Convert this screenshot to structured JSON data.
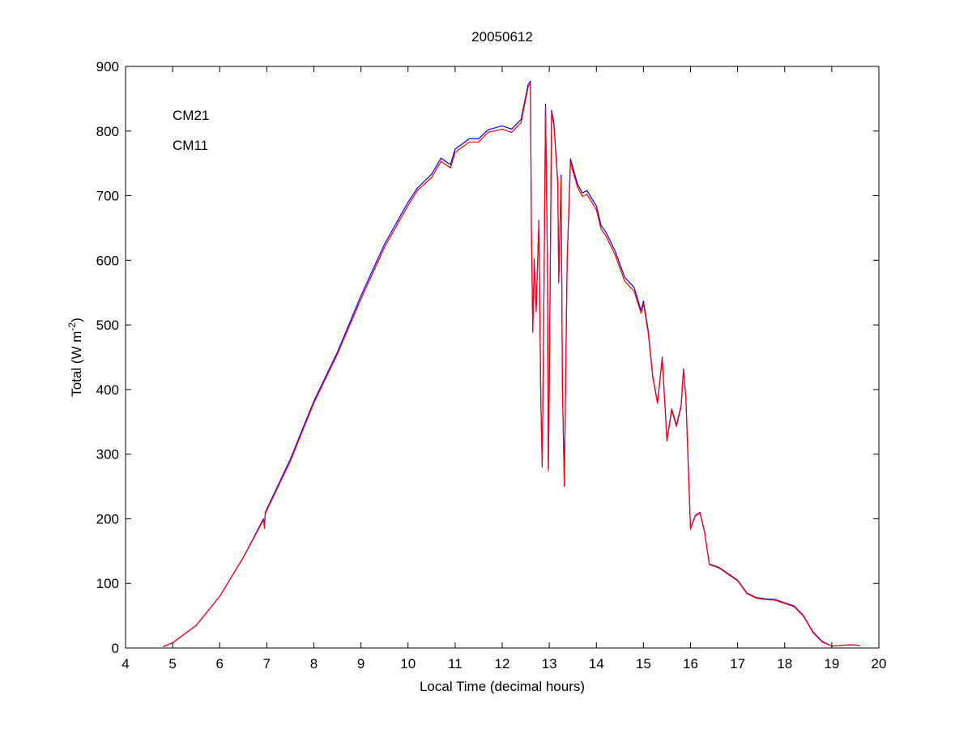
{
  "chart_data": {
    "type": "line",
    "title": "20050612",
    "xlabel": "Local Time (decimal hours)",
    "ylabel_prefix": "Total (W m",
    "ylabel_sup": "-2",
    "ylabel_suffix": ")",
    "xlim": [
      4,
      20
    ],
    "ylim": [
      0,
      900
    ],
    "xticks": [
      4,
      5,
      6,
      7,
      8,
      9,
      10,
      11,
      12,
      13,
      14,
      15,
      16,
      17,
      18,
      19,
      20
    ],
    "yticks": [
      0,
      100,
      200,
      300,
      400,
      500,
      600,
      700,
      800,
      900
    ],
    "grid": false,
    "legend_placement": "top-left",
    "x": [
      4.8,
      5.0,
      5.5,
      6.0,
      6.5,
      6.93,
      6.95,
      6.97,
      7.0,
      7.5,
      8.0,
      8.5,
      9.0,
      9.5,
      10.0,
      10.2,
      10.5,
      10.7,
      10.9,
      11.0,
      11.3,
      11.5,
      11.7,
      12.0,
      12.2,
      12.4,
      12.55,
      12.6,
      12.62,
      12.65,
      12.68,
      12.72,
      12.78,
      12.82,
      12.85,
      12.88,
      12.92,
      12.96,
      12.98,
      13.0,
      13.05,
      13.1,
      13.18,
      13.2,
      13.25,
      13.28,
      13.32,
      13.38,
      13.45,
      13.5,
      13.6,
      13.7,
      13.8,
      14.0,
      14.1,
      14.2,
      14.4,
      14.6,
      14.8,
      14.95,
      15.0,
      15.1,
      15.2,
      15.3,
      15.4,
      15.5,
      15.6,
      15.7,
      15.8,
      15.85,
      15.9,
      16.0,
      16.1,
      16.2,
      16.3,
      16.4,
      16.6,
      16.8,
      17.0,
      17.2,
      17.4,
      17.6,
      17.8,
      18.0,
      18.2,
      18.4,
      18.6,
      18.8,
      19.0,
      19.2,
      19.4,
      19.6
    ],
    "series": [
      {
        "name": "CM21",
        "color": "#0000ff",
        "values": [
          2,
          8,
          35,
          80,
          140,
          200,
          190,
          210,
          215,
          292,
          382,
          458,
          545,
          625,
          690,
          712,
          733,
          758,
          748,
          772,
          788,
          788,
          802,
          808,
          803,
          818,
          872,
          877,
          652,
          492,
          602,
          522,
          662,
          382,
          282,
          502,
          842,
          602,
          277,
          402,
          832,
          812,
          722,
          567,
          732,
          402,
          252,
          602,
          757,
          744,
          718,
          704,
          708,
          684,
          654,
          644,
          614,
          574,
          558,
          522,
          537,
          492,
          420,
          380,
          450,
          322,
          370,
          345,
          375,
          432,
          390,
          185,
          205,
          210,
          180,
          130,
          125,
          115,
          105,
          85,
          78,
          76,
          75,
          70,
          65,
          50,
          25,
          10,
          3,
          4,
          5,
          4
        ]
      },
      {
        "name": "CM11",
        "color": "#ff0000",
        "values": [
          2,
          8,
          35,
          80,
          140,
          198,
          185,
          208,
          213,
          289,
          379,
          455,
          540,
          620,
          685,
          708,
          728,
          753,
          743,
          767,
          783,
          783,
          798,
          803,
          798,
          813,
          868,
          874,
          650,
          488,
          600,
          520,
          660,
          380,
          280,
          500,
          838,
          600,
          274,
          400,
          828,
          808,
          718,
          565,
          728,
          400,
          250,
          598,
          752,
          738,
          713,
          699,
          702,
          678,
          648,
          638,
          608,
          568,
          552,
          518,
          533,
          488,
          418,
          378,
          448,
          320,
          368,
          343,
          373,
          430,
          388,
          184,
          204,
          209,
          179,
          129,
          124,
          114,
          104,
          84,
          77,
          75,
          74,
          69,
          64,
          49,
          24,
          9,
          3,
          4,
          5,
          4
        ]
      }
    ]
  }
}
